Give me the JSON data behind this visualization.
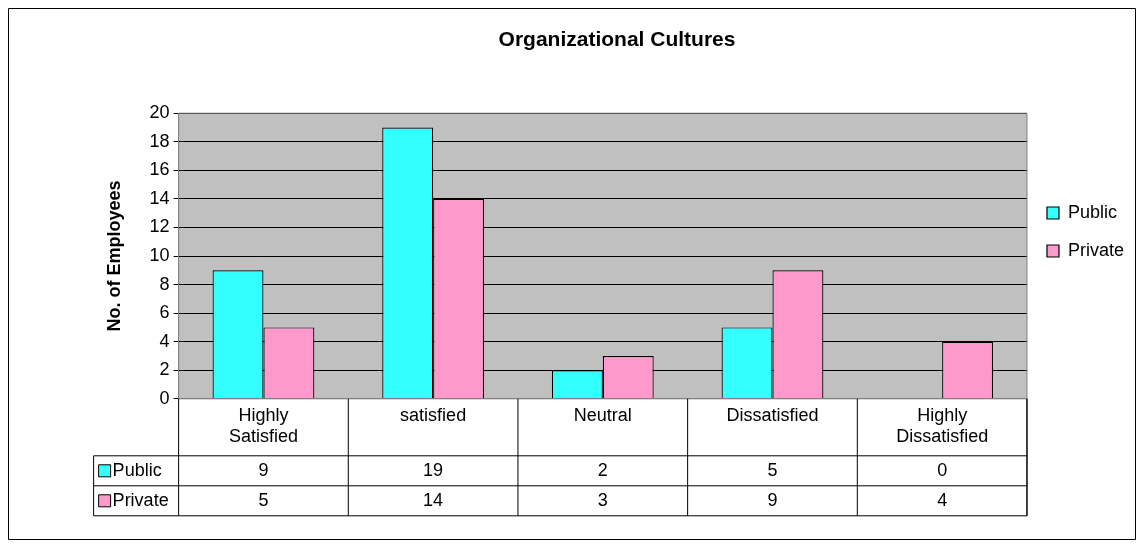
{
  "chart_data": {
    "type": "bar",
    "title": "Organizational Cultures",
    "ylabel": "No. of Employees",
    "categories": [
      "Highly Satisfied",
      "satisfied",
      "Neutral",
      "Dissatisfied",
      "Highly Dissatisfied"
    ],
    "series": [
      {
        "name": "Public",
        "color": "#33ffff",
        "values": [
          9,
          19,
          2,
          5,
          0
        ]
      },
      {
        "name": "Private",
        "color": "#ff99cc",
        "values": [
          5,
          14,
          3,
          9,
          4
        ]
      }
    ],
    "ylim": [
      0,
      20
    ],
    "yticks": [
      0,
      2,
      4,
      6,
      8,
      10,
      12,
      14,
      16,
      18,
      20
    ],
    "grid": "y",
    "legend": "right",
    "data_labels": true
  }
}
